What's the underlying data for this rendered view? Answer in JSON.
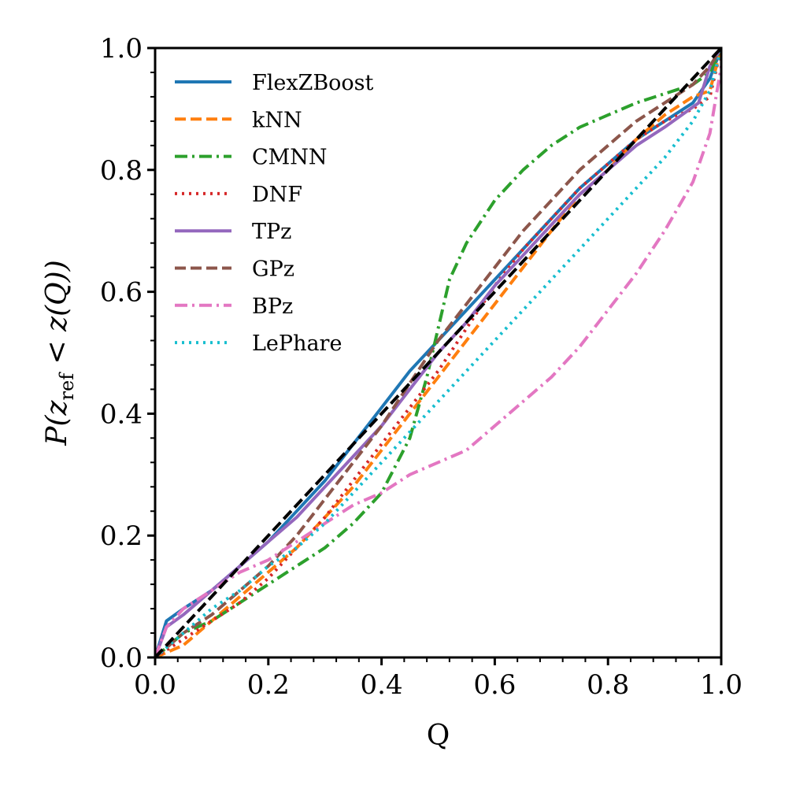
{
  "chart_data": {
    "type": "line",
    "xlabel": "Q",
    "ylabel": {
      "prefix": "P(",
      "var": "z",
      "sub": "ref",
      "suffix": " < z(Q))"
    },
    "xlim": [
      0.0,
      1.0
    ],
    "ylim": [
      0.0,
      1.0
    ],
    "xticks": [
      "0.0",
      "0.2",
      "0.4",
      "0.6",
      "0.8",
      "1.0"
    ],
    "yticks": [
      "0.0",
      "0.2",
      "0.4",
      "0.6",
      "0.8",
      "1.0"
    ],
    "legend_position": "top-left",
    "reference_line": {
      "name": "y = x",
      "color": "#000000",
      "x": [
        0.0,
        1.0
      ],
      "y": [
        0.0,
        1.0
      ]
    },
    "series": [
      {
        "name": "FlexZBoost",
        "color": "#1f77b4",
        "dash": "solid",
        "x": [
          0.0,
          0.02,
          0.05,
          0.1,
          0.15,
          0.2,
          0.25,
          0.3,
          0.35,
          0.4,
          0.45,
          0.5,
          0.55,
          0.6,
          0.65,
          0.7,
          0.75,
          0.8,
          0.85,
          0.9,
          0.95,
          0.98,
          1.0
        ],
        "y": [
          0.0,
          0.06,
          0.08,
          0.11,
          0.15,
          0.19,
          0.24,
          0.29,
          0.35,
          0.41,
          0.47,
          0.52,
          0.57,
          0.62,
          0.67,
          0.72,
          0.77,
          0.81,
          0.85,
          0.88,
          0.91,
          0.95,
          1.0
        ]
      },
      {
        "name": "kNN",
        "color": "#ff7f0e",
        "dash": "dashed",
        "x": [
          0.0,
          0.05,
          0.1,
          0.15,
          0.2,
          0.25,
          0.3,
          0.35,
          0.4,
          0.45,
          0.5,
          0.55,
          0.6,
          0.65,
          0.7,
          0.75,
          0.8,
          0.85,
          0.9,
          0.95,
          0.98,
          1.0
        ],
        "y": [
          0.0,
          0.02,
          0.06,
          0.1,
          0.14,
          0.18,
          0.23,
          0.28,
          0.34,
          0.4,
          0.46,
          0.52,
          0.58,
          0.64,
          0.7,
          0.76,
          0.8,
          0.85,
          0.89,
          0.92,
          0.93,
          1.0
        ]
      },
      {
        "name": "CMNN",
        "color": "#2ca02c",
        "dash": "dashdot",
        "x": [
          0.0,
          0.05,
          0.1,
          0.15,
          0.2,
          0.25,
          0.3,
          0.35,
          0.4,
          0.45,
          0.48,
          0.5,
          0.52,
          0.55,
          0.6,
          0.65,
          0.7,
          0.75,
          0.8,
          0.85,
          0.9,
          0.95,
          0.98,
          1.0
        ],
        "y": [
          0.0,
          0.04,
          0.06,
          0.09,
          0.12,
          0.15,
          0.18,
          0.22,
          0.27,
          0.36,
          0.46,
          0.54,
          0.62,
          0.68,
          0.75,
          0.8,
          0.84,
          0.87,
          0.89,
          0.91,
          0.925,
          0.94,
          0.96,
          1.0
        ]
      },
      {
        "name": "DNF",
        "color": "#d62728",
        "dash": "dotted",
        "x": [
          0.0,
          0.05,
          0.1,
          0.15,
          0.2,
          0.25,
          0.3,
          0.35,
          0.4,
          0.45,
          0.5,
          0.55,
          0.6,
          0.65,
          0.7,
          0.75,
          0.8,
          0.85,
          0.9,
          0.95,
          0.98,
          1.0
        ],
        "y": [
          0.0,
          0.03,
          0.06,
          0.09,
          0.13,
          0.18,
          0.23,
          0.29,
          0.35,
          0.41,
          0.47,
          0.54,
          0.61,
          0.67,
          0.72,
          0.77,
          0.81,
          0.85,
          0.88,
          0.9,
          0.92,
          1.0
        ]
      },
      {
        "name": "TPz",
        "color": "#9467bd",
        "dash": "solid",
        "x": [
          0.0,
          0.02,
          0.05,
          0.1,
          0.15,
          0.2,
          0.25,
          0.3,
          0.35,
          0.4,
          0.45,
          0.5,
          0.55,
          0.6,
          0.65,
          0.7,
          0.75,
          0.8,
          0.85,
          0.9,
          0.96,
          0.98,
          1.0
        ],
        "y": [
          0.0,
          0.05,
          0.07,
          0.11,
          0.15,
          0.19,
          0.23,
          0.28,
          0.33,
          0.38,
          0.44,
          0.5,
          0.55,
          0.61,
          0.66,
          0.71,
          0.76,
          0.8,
          0.84,
          0.87,
          0.91,
          0.97,
          1.0
        ]
      },
      {
        "name": "GPz",
        "color": "#8c564b",
        "dash": "dashed",
        "x": [
          0.0,
          0.05,
          0.1,
          0.15,
          0.2,
          0.25,
          0.3,
          0.35,
          0.4,
          0.45,
          0.5,
          0.55,
          0.6,
          0.65,
          0.7,
          0.75,
          0.8,
          0.85,
          0.9,
          0.95,
          0.98,
          1.0
        ],
        "y": [
          0.0,
          0.04,
          0.07,
          0.11,
          0.15,
          0.2,
          0.26,
          0.32,
          0.38,
          0.45,
          0.52,
          0.58,
          0.64,
          0.7,
          0.75,
          0.8,
          0.84,
          0.88,
          0.91,
          0.94,
          0.97,
          1.0
        ]
      },
      {
        "name": "BPz",
        "color": "#e377c2",
        "dash": "dashdot",
        "x": [
          0.0,
          0.02,
          0.05,
          0.1,
          0.15,
          0.2,
          0.25,
          0.3,
          0.35,
          0.4,
          0.45,
          0.5,
          0.55,
          0.6,
          0.65,
          0.7,
          0.75,
          0.8,
          0.85,
          0.9,
          0.95,
          0.98,
          1.0
        ],
        "y": [
          0.0,
          0.05,
          0.08,
          0.11,
          0.14,
          0.16,
          0.19,
          0.22,
          0.25,
          0.27,
          0.3,
          0.32,
          0.34,
          0.38,
          0.42,
          0.46,
          0.51,
          0.57,
          0.63,
          0.7,
          0.78,
          0.86,
          0.97
        ]
      },
      {
        "name": "LePhare",
        "color": "#17becf",
        "dash": "dotted",
        "x": [
          0.0,
          0.05,
          0.1,
          0.15,
          0.2,
          0.25,
          0.3,
          0.35,
          0.4,
          0.45,
          0.5,
          0.55,
          0.6,
          0.65,
          0.7,
          0.75,
          0.8,
          0.85,
          0.9,
          0.95,
          0.98,
          1.0
        ],
        "y": [
          0.0,
          0.04,
          0.08,
          0.11,
          0.15,
          0.18,
          0.22,
          0.27,
          0.32,
          0.37,
          0.42,
          0.47,
          0.52,
          0.57,
          0.62,
          0.67,
          0.72,
          0.77,
          0.82,
          0.88,
          0.93,
          1.0
        ]
      }
    ]
  }
}
